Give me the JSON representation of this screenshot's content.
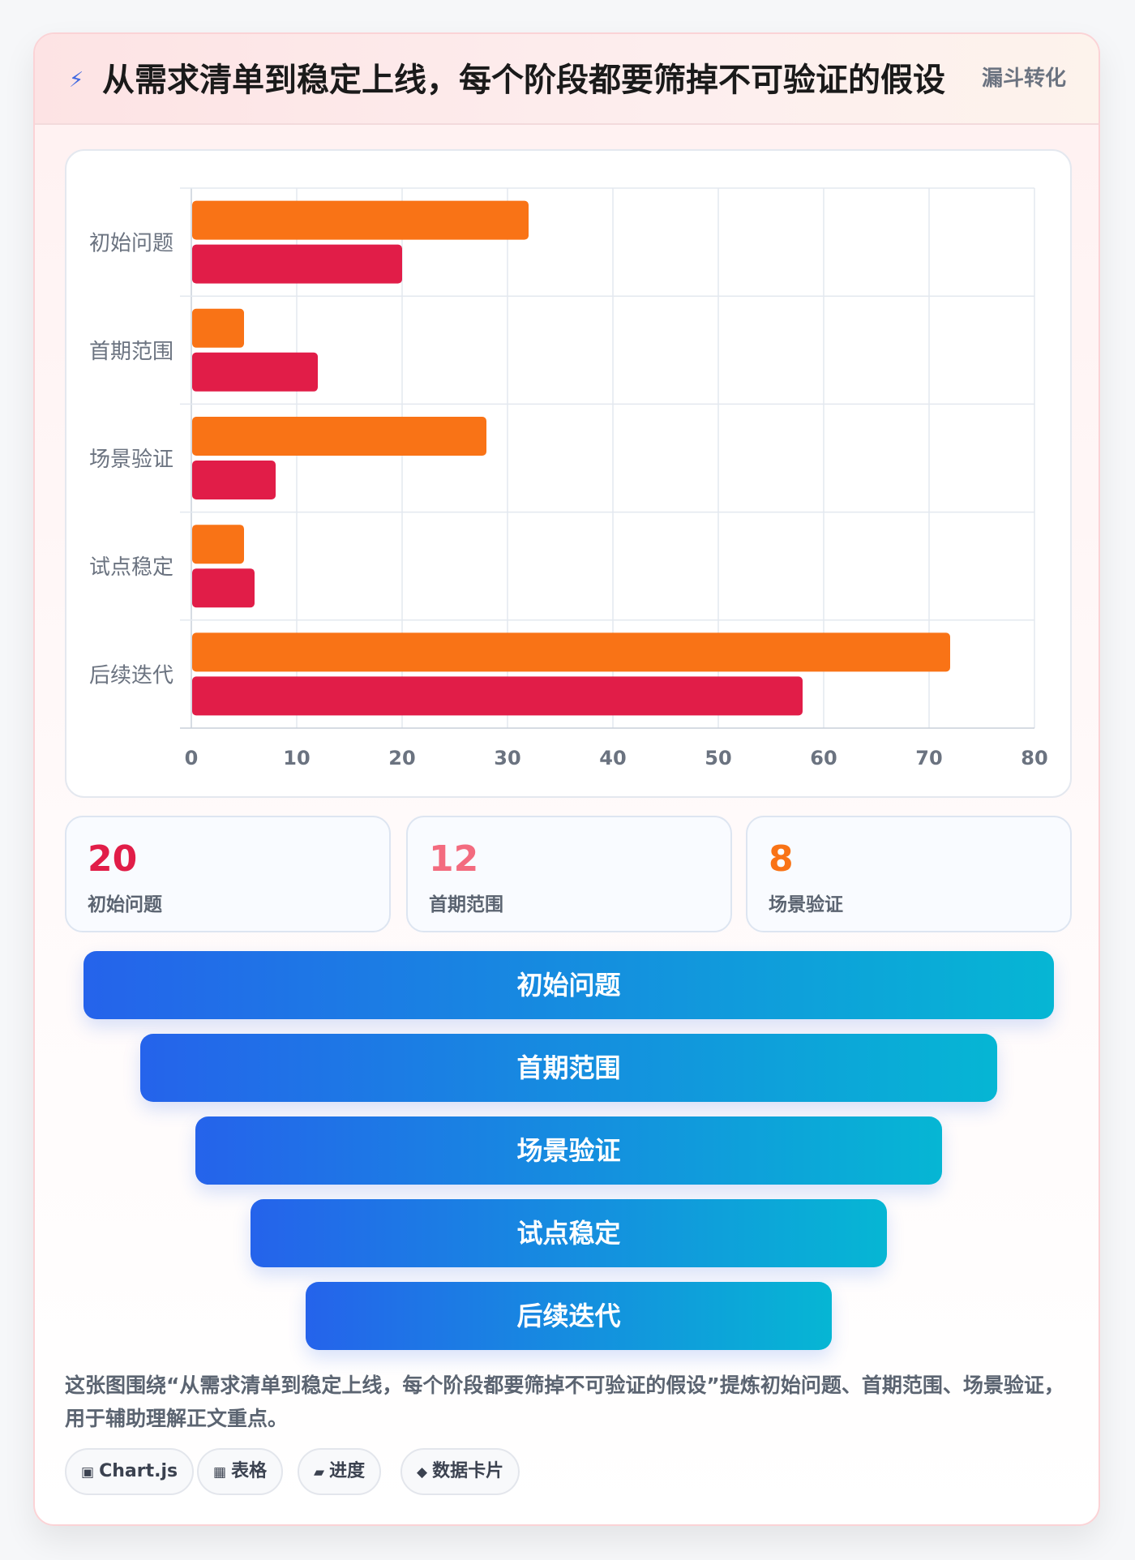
{
  "header": {
    "icon": "⚡",
    "title": "从需求清单到稳定上线，每个阶段都要筛掉不可验证的假设",
    "tag": "漏斗转化"
  },
  "chart_data": {
    "type": "bar",
    "orientation": "horizontal",
    "categories": [
      "初始问题",
      "首期范围",
      "场景验证",
      "试点稳定",
      "后续迭代"
    ],
    "series": [
      {
        "values": [
          32,
          5,
          28,
          5,
          72
        ],
        "color": "#f97316"
      },
      {
        "values": [
          20,
          12,
          8,
          6,
          58
        ],
        "color": "#e11d48"
      }
    ],
    "xlim": [
      0,
      80
    ],
    "xticks": [
      "0",
      "10",
      "20",
      "30",
      "40",
      "50",
      "60",
      "70",
      "80"
    ],
    "grid": true,
    "legend": "none"
  },
  "stats": [
    {
      "value": "20",
      "label": "初始问题",
      "color": "#e11d48"
    },
    {
      "value": "12",
      "label": "首期范围",
      "color": "#f36b7f"
    },
    {
      "value": "8",
      "label": "场景验证",
      "color": "#f97316"
    }
  ],
  "funnel": [
    "初始问题",
    "首期范围",
    "场景验证",
    "试点稳定",
    "后续迭代"
  ],
  "description": "这张图围绕“从需求清单到稳定上线，每个阶段都要筛掉不可验证的假设”提炼初始问题、首期范围、场景验证，用于辅助理解正文重点。",
  "chips": [
    {
      "icon": "▣",
      "label": "Chart.js"
    },
    {
      "icon": "▦",
      "label": "表格"
    },
    {
      "icon": "▰",
      "label": "进度"
    },
    {
      "icon": "◆",
      "label": "数据卡片"
    }
  ]
}
